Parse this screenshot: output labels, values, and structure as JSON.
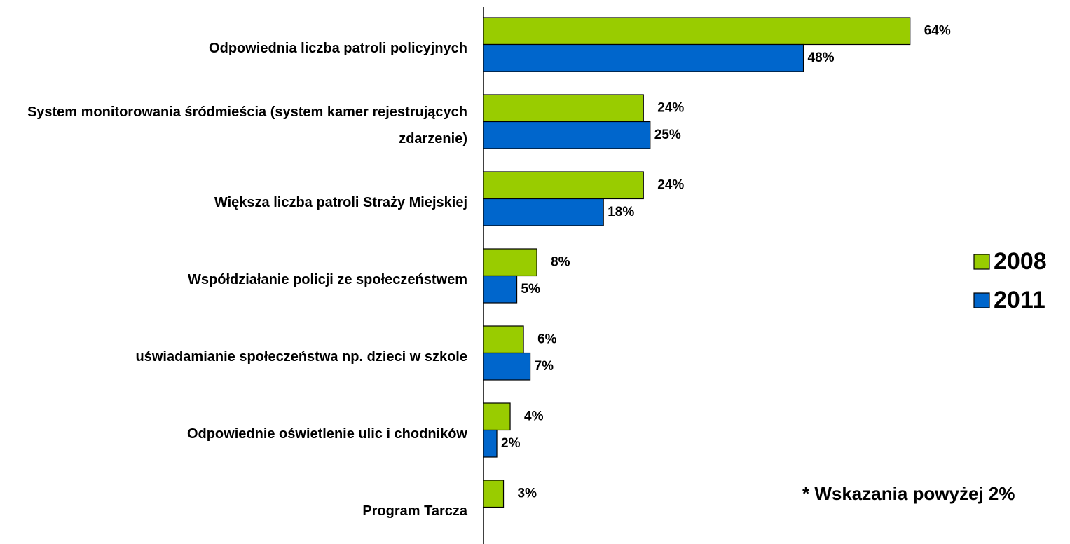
{
  "chart_data": {
    "type": "bar",
    "orientation": "horizontal",
    "categories": [
      "Odpowiednia liczba patroli policyjnych",
      "System monitorowania śródmieścia (system kamer rejestrujących zdarzenie)",
      "Większa liczba patroli Straży Miejskiej",
      "Współdziałanie policji ze społeczeństwem",
      "uświadamianie społeczeństwa np. dzieci w szkole",
      "Odpowiednie oświetlenie ulic i chodników",
      "Program Tarcza"
    ],
    "series": [
      {
        "name": "2008",
        "color": "#99cc00",
        "values": [
          64,
          24,
          24,
          8,
          6,
          4,
          3
        ],
        "value_labels": [
          "64%",
          "24%",
          "24%",
          "8%",
          "6%",
          "4%",
          "3%"
        ]
      },
      {
        "name": "2011",
        "color": "#0066cc",
        "values": [
          48,
          25,
          18,
          5,
          7,
          2,
          null
        ],
        "value_labels": [
          "48%",
          "25%",
          "18%",
          "5%",
          "7%",
          "2%",
          null
        ]
      }
    ],
    "xlim": [
      0,
      88
    ],
    "legend": "right",
    "annotation": "* Wskazania powyżej 2%"
  }
}
